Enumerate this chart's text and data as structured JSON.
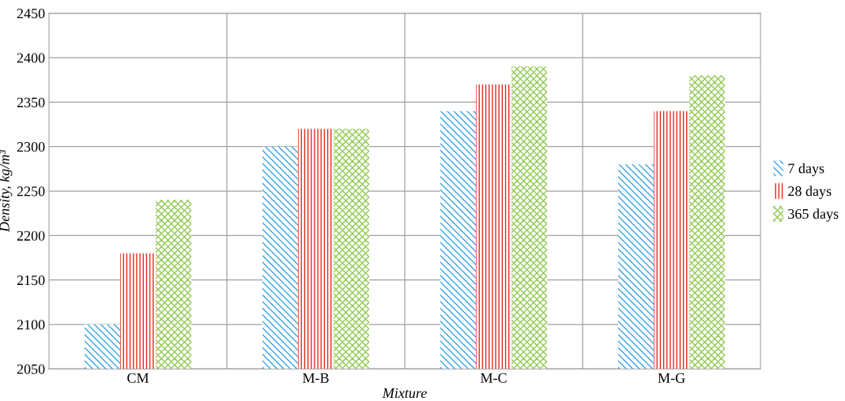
{
  "chart_data": {
    "type": "bar",
    "xlabel": "Mixture",
    "ylabel": "Density, kg/m³",
    "categories": [
      "CM",
      "M-B",
      "M-C",
      "M-G"
    ],
    "series": [
      {
        "name": "7 days",
        "color": "#3ba3e3",
        "values": [
          2100,
          2300,
          2340,
          2280
        ]
      },
      {
        "name": "28 days",
        "color": "#e8281e",
        "values": [
          2180,
          2320,
          2370,
          2340
        ]
      },
      {
        "name": "365 days",
        "color": "#93c954",
        "values": [
          2240,
          2320,
          2390,
          2380
        ]
      }
    ],
    "ylim": [
      2050,
      2450
    ],
    "yticks": [
      2050,
      2100,
      2150,
      2200,
      2250,
      2300,
      2350,
      2400,
      2450
    ],
    "grid": true,
    "legend": "right"
  }
}
